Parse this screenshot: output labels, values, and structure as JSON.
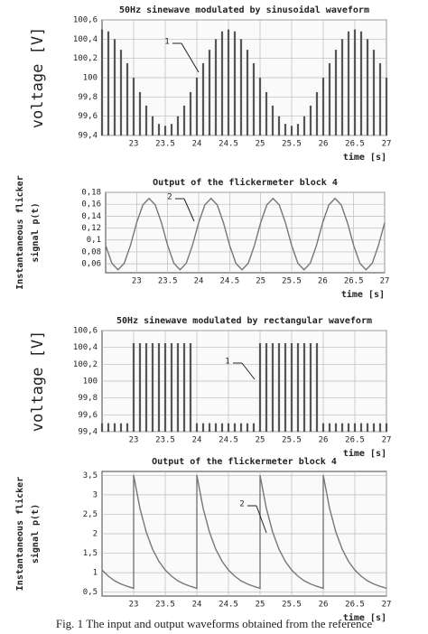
{
  "chart_data": [
    {
      "type": "spikes",
      "title": "50Hz sinewave modulated by sinusoidal waveform",
      "ylabel": [
        "voltage [V]"
      ],
      "xlabel": "time [s]",
      "annotation": "1",
      "color": "#555555",
      "grid": true,
      "xlim": [
        22.5,
        27
      ],
      "xticks": [
        23,
        23.5,
        24,
        24.5,
        25,
        25.5,
        26,
        26.5,
        27
      ],
      "ylim": [
        99.4,
        100.6
      ],
      "yticks": [
        {
          "value": 99.4,
          "label": "99,4"
        },
        {
          "value": 99.6,
          "label": "99,6"
        },
        {
          "value": 99.8,
          "label": "99,8"
        },
        {
          "value": 100,
          "label": "100"
        },
        {
          "value": 100.2,
          "label": "100,2"
        },
        {
          "value": 100.4,
          "label": "100,4"
        },
        {
          "value": 100.6,
          "label": "100,6"
        }
      ],
      "x": [
        22.5,
        22.6,
        22.7,
        22.8,
        22.9,
        23,
        23.1,
        23.2,
        23.3,
        23.4,
        23.5,
        23.6,
        23.7,
        23.8,
        23.9,
        24,
        24.1,
        24.2,
        24.3,
        24.4,
        24.5,
        24.6,
        24.7,
        24.8,
        24.9,
        25,
        25.1,
        25.2,
        25.3,
        25.4,
        25.5,
        25.6,
        25.7,
        25.8,
        25.9,
        26,
        26.1,
        26.2,
        26.3,
        26.4,
        26.5,
        26.6,
        26.7,
        26.8,
        26.9,
        27
      ],
      "values": [
        100.5,
        100.48,
        100.4,
        100.29,
        100.15,
        100,
        99.85,
        99.71,
        99.6,
        99.52,
        99.5,
        99.52,
        99.6,
        99.71,
        99.85,
        100,
        100.15,
        100.29,
        100.4,
        100.48,
        100.5,
        100.48,
        100.4,
        100.29,
        100.15,
        100,
        99.85,
        99.71,
        99.6,
        99.52,
        99.5,
        99.52,
        99.6,
        99.71,
        99.85,
        100,
        100.15,
        100.29,
        100.4,
        100.48,
        100.5,
        100.48,
        100.4,
        100.29,
        100.15,
        100
      ]
    },
    {
      "type": "line",
      "title": "Output of the flickermeter block 4",
      "ylabel": [
        "Instantaneous flicker",
        "signal p(t)"
      ],
      "xlabel": "time [s]",
      "annotation": "2",
      "color": "#777777",
      "grid": true,
      "xlim": [
        22.5,
        27
      ],
      "xticks": [
        23,
        23.5,
        24,
        24.5,
        25,
        25.5,
        26,
        26.5,
        27
      ],
      "ylim": [
        0.045,
        0.18
      ],
      "yticks": [
        {
          "value": 0.06,
          "label": "0,06"
        },
        {
          "value": 0.08,
          "label": "0,08"
        },
        {
          "value": 0.1,
          "label": "0,1"
        },
        {
          "value": 0.12,
          "label": "0,12"
        },
        {
          "value": 0.14,
          "label": "0,14"
        },
        {
          "value": 0.16,
          "label": "0,16"
        },
        {
          "value": 0.18,
          "label": "0,18"
        }
      ],
      "x": [
        22.5,
        22.6,
        22.7,
        22.8,
        22.9,
        23,
        23.1,
        23.2,
        23.3,
        23.4,
        23.5,
        23.6,
        23.7,
        23.8,
        23.9,
        24,
        24.1,
        24.2,
        24.3,
        24.4,
        24.5,
        24.6,
        24.7,
        24.8,
        24.9,
        25,
        25.1,
        25.2,
        25.3,
        25.4,
        25.5,
        25.6,
        25.7,
        25.8,
        25.9,
        26,
        26.1,
        26.2,
        26.3,
        26.4,
        26.5,
        26.6,
        26.7,
        26.8,
        26.9,
        27
      ],
      "values": [
        0.091,
        0.061,
        0.05,
        0.061,
        0.091,
        0.129,
        0.159,
        0.17,
        0.159,
        0.129,
        0.091,
        0.061,
        0.05,
        0.061,
        0.091,
        0.129,
        0.159,
        0.17,
        0.159,
        0.129,
        0.091,
        0.061,
        0.05,
        0.061,
        0.091,
        0.129,
        0.159,
        0.17,
        0.159,
        0.129,
        0.091,
        0.061,
        0.05,
        0.061,
        0.091,
        0.129,
        0.159,
        0.17,
        0.159,
        0.129,
        0.091,
        0.061,
        0.05,
        0.061,
        0.091,
        0.129
      ]
    },
    {
      "type": "spikes",
      "title": "50Hz sinewave modulated by rectangular waveform",
      "ylabel": [
        "voltage [V]"
      ],
      "xlabel": "time [s]",
      "annotation": "1",
      "color": "#555555",
      "grid": true,
      "xlim": [
        22.5,
        27
      ],
      "xticks": [
        23,
        23.5,
        24,
        24.5,
        25,
        25.5,
        26,
        26.5,
        27
      ],
      "ylim": [
        99.4,
        100.6
      ],
      "yticks": [
        {
          "value": 99.4,
          "label": "99,4"
        },
        {
          "value": 99.6,
          "label": "99,6"
        },
        {
          "value": 99.8,
          "label": "99,8"
        },
        {
          "value": 100,
          "label": "100"
        },
        {
          "value": 100.2,
          "label": "100,2"
        },
        {
          "value": 100.4,
          "label": "100,4"
        },
        {
          "value": 100.6,
          "label": "100,6"
        }
      ],
      "x": [
        22.5,
        22.6,
        22.7,
        22.8,
        22.9,
        23,
        23.1,
        23.2,
        23.3,
        23.4,
        23.5,
        23.6,
        23.7,
        23.8,
        23.9,
        24,
        24.1,
        24.2,
        24.3,
        24.4,
        24.5,
        24.6,
        24.7,
        24.8,
        24.9,
        25,
        25.1,
        25.2,
        25.3,
        25.4,
        25.5,
        25.6,
        25.7,
        25.8,
        25.9,
        26,
        26.1,
        26.2,
        26.3,
        26.4,
        26.5,
        26.6,
        26.7,
        26.8,
        26.9,
        27
      ],
      "values": [
        99.5,
        99.5,
        99.5,
        99.5,
        99.5,
        100.45,
        100.45,
        100.45,
        100.45,
        100.45,
        100.45,
        100.45,
        100.45,
        100.45,
        100.45,
        99.5,
        99.5,
        99.5,
        99.5,
        99.5,
        99.5,
        99.5,
        99.5,
        99.5,
        99.5,
        100.45,
        100.45,
        100.45,
        100.45,
        100.45,
        100.45,
        100.45,
        100.45,
        100.45,
        100.45,
        99.5,
        99.5,
        99.5,
        99.5,
        99.5,
        99.5,
        99.5,
        99.5,
        99.5,
        99.5,
        99.5
      ]
    },
    {
      "type": "line",
      "title": "Output of the flickermeter block 4",
      "ylabel": [
        "Instantaneous flicker",
        "signal p(t)"
      ],
      "xlabel": "time [s]",
      "annotation": "2",
      "color": "#777777",
      "grid": true,
      "xlim": [
        22.5,
        27
      ],
      "xticks": [
        23,
        23.5,
        24,
        24.5,
        25,
        25.5,
        26,
        26.5,
        27
      ],
      "ylim": [
        0.4,
        3.6
      ],
      "yticks": [
        {
          "value": 0.5,
          "label": "0,5"
        },
        1,
        {
          "value": 1.5,
          "label": "1,5"
        },
        2,
        {
          "value": 2.5,
          "label": "2,5"
        },
        3,
        {
          "value": 3.5,
          "label": "3,5"
        }
      ],
      "x": [
        22.5,
        22.6,
        22.7,
        22.8,
        22.9,
        23,
        23,
        23.1,
        23.2,
        23.3,
        23.4,
        23.5,
        23.6,
        23.7,
        23.8,
        23.9,
        24,
        24,
        24.1,
        24.2,
        24.3,
        24.4,
        24.5,
        24.6,
        24.7,
        24.8,
        24.9,
        25,
        25,
        25.1,
        25.2,
        25.3,
        25.4,
        25.5,
        25.6,
        25.7,
        25.8,
        25.9,
        26,
        26,
        26.1,
        26.2,
        26.3,
        26.4,
        26.5,
        26.6,
        26.7,
        26.8,
        26.9,
        27
      ],
      "values": [
        1.07,
        0.91,
        0.79,
        0.71,
        0.65,
        0.6,
        3.5,
        2.65,
        2.04,
        1.6,
        1.29,
        1.07,
        0.91,
        0.79,
        0.71,
        0.65,
        0.6,
        3.5,
        2.65,
        2.04,
        1.6,
        1.29,
        1.07,
        0.91,
        0.79,
        0.71,
        0.65,
        0.6,
        3.5,
        2.65,
        2.04,
        1.6,
        1.29,
        1.07,
        0.91,
        0.79,
        0.71,
        0.65,
        0.6,
        3.5,
        2.65,
        2.04,
        1.6,
        1.29,
        1.07,
        0.91,
        0.79,
        0.71,
        0.65,
        0.6
      ]
    }
  ],
  "caption": "Fig. 1 The input and output waveforms obtained from the reference"
}
